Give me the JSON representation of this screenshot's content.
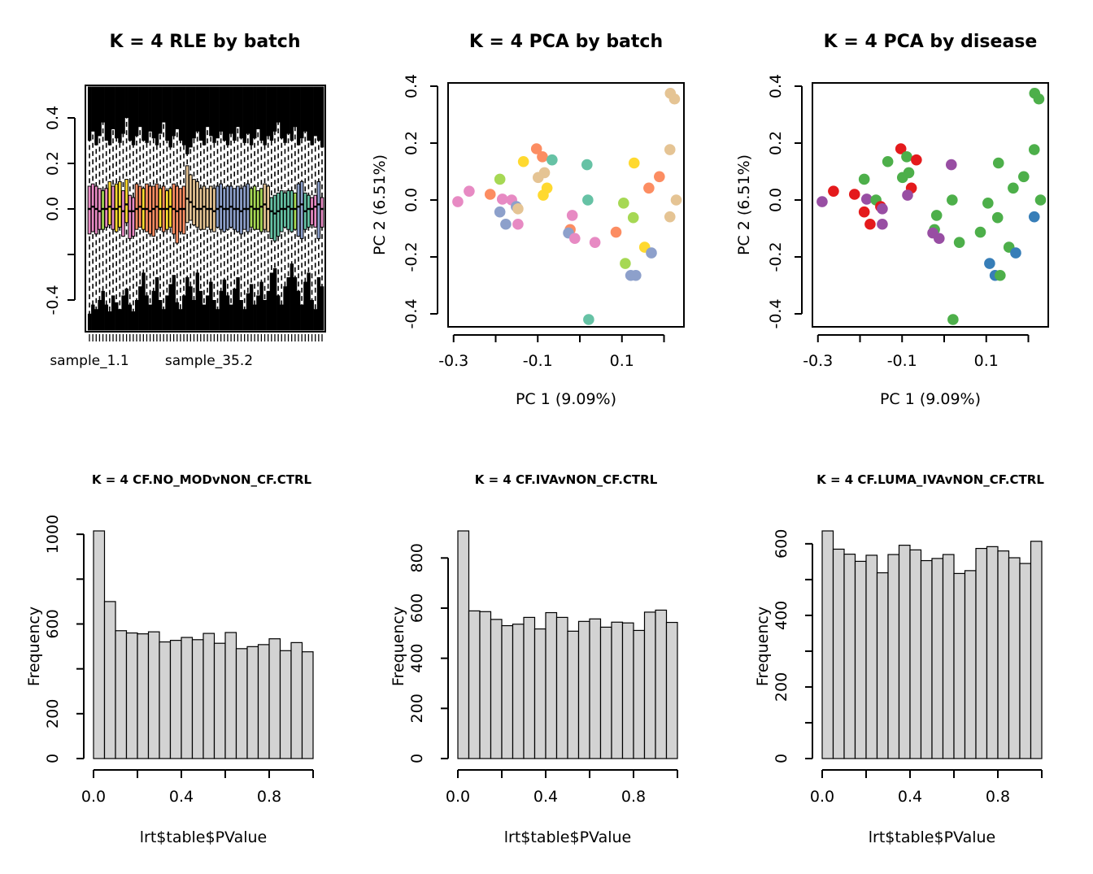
{
  "palettes": {
    "batch": {
      "teal": "#66C2A5",
      "orange": "#FC8D62",
      "blue": "#8DA0CB",
      "pink": "#E78AC3",
      "green": "#A6D854",
      "yellow": "#FFD92F",
      "tan": "#E5C494"
    },
    "disease": {
      "red": "#E41A1C",
      "blue": "#377EB8",
      "green": "#4DAF4A",
      "purple": "#984EA3"
    }
  },
  "hist_bar_fill": "#d3d3d3",
  "pca_points": [
    [
      -0.103,
      0.18,
      "orange",
      "red"
    ],
    [
      -0.089,
      0.152,
      "orange",
      "green"
    ],
    [
      -0.066,
      0.141,
      "teal",
      "red"
    ],
    [
      -0.134,
      0.135,
      "yellow",
      "green"
    ],
    [
      0.017,
      0.124,
      "teal",
      "purple"
    ],
    [
      0.129,
      0.13,
      "yellow",
      "green"
    ],
    [
      0.214,
      0.177,
      "tan",
      "green"
    ],
    [
      -0.19,
      0.073,
      "green",
      "green"
    ],
    [
      -0.099,
      0.079,
      "tan",
      "green"
    ],
    [
      -0.084,
      0.096,
      "tan",
      "green"
    ],
    [
      0.189,
      0.082,
      "orange",
      "green"
    ],
    [
      0.164,
      0.042,
      "orange",
      "green"
    ],
    [
      -0.078,
      0.042,
      "yellow",
      "red"
    ],
    [
      -0.087,
      0.017,
      "yellow",
      "purple"
    ],
    [
      -0.263,
      0.031,
      "pink",
      "red"
    ],
    [
      -0.29,
      -0.006,
      "pink",
      "purple"
    ],
    [
      -0.213,
      0.02,
      "orange",
      "red"
    ],
    [
      -0.184,
      0.003,
      "pink",
      "purple"
    ],
    [
      -0.162,
      0.0,
      "pink",
      "green"
    ],
    [
      -0.151,
      -0.023,
      "blue",
      "red"
    ],
    [
      -0.147,
      -0.031,
      "tan",
      "purple"
    ],
    [
      -0.19,
      -0.042,
      "blue",
      "red"
    ],
    [
      0.019,
      0.0,
      "teal",
      "green"
    ],
    [
      0.104,
      -0.011,
      "green",
      "green"
    ],
    [
      0.229,
      0.0,
      "tan",
      "green"
    ],
    [
      0.214,
      -0.059,
      "tan",
      "blue"
    ],
    [
      0.127,
      -0.062,
      "green",
      "green"
    ],
    [
      -0.176,
      -0.085,
      "blue",
      "red"
    ],
    [
      -0.147,
      -0.085,
      "pink",
      "purple"
    ],
    [
      -0.018,
      -0.054,
      "pink",
      "green"
    ],
    [
      -0.023,
      -0.104,
      "orange",
      "green"
    ],
    [
      -0.027,
      -0.116,
      "blue",
      "purple"
    ],
    [
      -0.012,
      -0.135,
      "pink",
      "purple"
    ],
    [
      0.036,
      -0.149,
      "pink",
      "green"
    ],
    [
      0.086,
      -0.113,
      "orange",
      "green"
    ],
    [
      0.154,
      -0.166,
      "yellow",
      "green"
    ],
    [
      0.17,
      -0.186,
      "blue",
      "blue"
    ],
    [
      0.108,
      -0.223,
      "green",
      "blue"
    ],
    [
      0.121,
      -0.265,
      "blue",
      "blue"
    ],
    [
      0.133,
      -0.265,
      "blue",
      "green"
    ],
    [
      0.021,
      -0.42,
      "teal",
      "green"
    ],
    [
      0.215,
      0.375,
      "tan",
      "green"
    ],
    [
      0.225,
      0.355,
      "tan",
      "green"
    ]
  ],
  "chart_data": [
    {
      "type": "boxplot",
      "title": "K = 4 RLE by batch",
      "ylim": [
        -0.54,
        0.54
      ],
      "yticks": [
        {
          "v": 0.4,
          "label": "0.4"
        },
        {
          "v": 0.2,
          "label": "0.2"
        },
        {
          "v": 0.0,
          "label": "0.0"
        },
        {
          "v": -0.2,
          "label": ""
        },
        {
          "v": -0.4,
          "label": "-0.4"
        }
      ],
      "sample_labels": [
        "sample_1.1",
        "sample_35.2"
      ],
      "n_boxes": 70,
      "colors": [
        "pink",
        "pink",
        "pink",
        "pink",
        "green",
        "pink",
        "yellow",
        "pink",
        "yellow",
        "yellow",
        "pink",
        "yellow",
        "pink",
        "pink",
        "orange",
        "orange",
        "yellow",
        "orange",
        "orange",
        "orange",
        "orange",
        "yellow",
        "orange",
        "yellow",
        "yellow",
        "orange",
        "orange",
        "orange",
        "orange",
        "tan",
        "tan",
        "tan",
        "tan",
        "tan",
        "tan",
        "tan",
        "tan",
        "tan",
        "blue",
        "blue",
        "blue",
        "blue",
        "blue",
        "blue",
        "blue",
        "blue",
        "blue",
        "blue",
        "green",
        "green",
        "green",
        "green",
        "tan",
        "tan",
        "teal",
        "teal",
        "teal",
        "teal",
        "teal",
        "teal",
        "teal",
        "green",
        "blue",
        "blue",
        "teal",
        "teal",
        "pink",
        "pink",
        "blue",
        "pink"
      ],
      "q3": [
        0.1,
        0.11,
        0.1,
        0.09,
        0.08,
        0.09,
        0.12,
        0.1,
        0.11,
        0.12,
        0.08,
        0.13,
        0.06,
        0.05,
        0.11,
        0.1,
        0.09,
        0.11,
        0.1,
        0.1,
        0.11,
        0.09,
        0.1,
        0.08,
        0.09,
        0.11,
        0.1,
        0.09,
        0.1,
        0.19,
        0.15,
        0.13,
        0.12,
        0.09,
        0.1,
        0.09,
        0.1,
        0.09,
        0.1,
        0.11,
        0.09,
        0.1,
        0.1,
        0.09,
        0.1,
        0.09,
        0.1,
        0.11,
        0.09,
        0.1,
        0.08,
        0.09,
        0.11,
        0.1,
        0.05,
        0.06,
        0.07,
        0.08,
        0.07,
        0.08,
        0.08,
        0.07,
        0.11,
        0.12,
        0.07,
        0.06,
        0.05,
        0.06,
        0.12,
        0.05
      ],
      "q1": [
        -0.11,
        -0.1,
        -0.11,
        -0.09,
        -0.09,
        -0.08,
        -0.07,
        -0.09,
        -0.1,
        -0.08,
        -0.12,
        -0.06,
        -0.13,
        -0.12,
        -0.09,
        -0.08,
        -0.09,
        -0.1,
        -0.11,
        -0.12,
        -0.09,
        -0.08,
        -0.1,
        -0.09,
        -0.08,
        -0.11,
        -0.15,
        -0.1,
        -0.11,
        -0.06,
        -0.05,
        -0.07,
        -0.08,
        -0.09,
        -0.09,
        -0.08,
        -0.09,
        -0.1,
        -0.08,
        -0.09,
        -0.1,
        -0.09,
        -0.08,
        -0.09,
        -0.1,
        -0.11,
        -0.09,
        -0.1,
        -0.08,
        -0.09,
        -0.09,
        -0.1,
        -0.09,
        -0.1,
        -0.13,
        -0.14,
        -0.12,
        -0.1,
        -0.08,
        -0.09,
        -0.1,
        -0.09,
        -0.12,
        -0.13,
        -0.09,
        -0.08,
        -0.07,
        -0.08,
        -0.13,
        -0.08
      ],
      "med": [
        0,
        0.01,
        0,
        -0.01,
        0,
        0,
        0.01,
        0,
        0,
        0.01,
        -0.01,
        0.02,
        -0.01,
        -0.01,
        0,
        0.01,
        0,
        0,
        -0.01,
        0,
        0.01,
        0,
        0,
        0,
        0.01,
        0,
        -0.01,
        0,
        0,
        0.045,
        0.03,
        0.01,
        0,
        0,
        0.01,
        0,
        0,
        -0.01,
        0,
        0.01,
        0,
        0,
        0.01,
        0,
        0,
        -0.01,
        0,
        0,
        0.01,
        0,
        0,
        0.01,
        0.02,
        0,
        -0.01,
        -0.02,
        -0.01,
        0,
        0,
        0.01,
        0,
        0,
        0.01,
        0.02,
        -0.01,
        0,
        0,
        0.01,
        0.02,
        0
      ],
      "outlier_top_extent": [
        0.3,
        0.34,
        0.28,
        0.32,
        0.38,
        0.3,
        0.28,
        0.35,
        0.31,
        0.29,
        0.33,
        0.4,
        0.3,
        0.28,
        0.32,
        0.36,
        0.3,
        0.29,
        0.34,
        0.31,
        0.28,
        0.33,
        0.38,
        0.3,
        0.27,
        0.32,
        0.35,
        0.3,
        0.28,
        0.24,
        0.27,
        0.31,
        0.34,
        0.3,
        0.28,
        0.36,
        0.32,
        0.29,
        0.31,
        0.34,
        0.3,
        0.28,
        0.33,
        0.3,
        0.36,
        0.31,
        0.29,
        0.33,
        0.28,
        0.31,
        0.35,
        0.3,
        0.28,
        0.32,
        0.3,
        0.34,
        0.38,
        0.31,
        0.29,
        0.33,
        0.3,
        0.36,
        0.28,
        0.31,
        0.34,
        0.3,
        0.28,
        0.32,
        0.3,
        0.27
      ],
      "outlier_bottom_extent": [
        -0.46,
        -0.42,
        -0.44,
        -0.4,
        -0.36,
        -0.42,
        -0.45,
        -0.38,
        -0.41,
        -0.44,
        -0.38,
        -0.35,
        -0.42,
        -0.45,
        -0.4,
        -0.34,
        -0.28,
        -0.38,
        -0.42,
        -0.36,
        -0.3,
        -0.4,
        -0.44,
        -0.38,
        -0.33,
        -0.29,
        -0.41,
        -0.44,
        -0.38,
        -0.3,
        -0.34,
        -0.4,
        -0.28,
        -0.36,
        -0.42,
        -0.38,
        -0.32,
        -0.4,
        -0.44,
        -0.36,
        -0.31,
        -0.38,
        -0.42,
        -0.35,
        -0.3,
        -0.4,
        -0.44,
        -0.37,
        -0.33,
        -0.42,
        -0.38,
        -0.32,
        -0.4,
        -0.36,
        -0.28,
        -0.26,
        -0.38,
        -0.42,
        -0.34,
        -0.3,
        -0.24,
        -0.3,
        -0.36,
        -0.42,
        -0.32,
        -0.28,
        -0.4,
        -0.44,
        -0.3,
        -0.34
      ]
    },
    {
      "type": "scatter",
      "title": "K = 4 PCA by batch",
      "xlabel": "PC 1 (9.09%)",
      "ylabel": "PC 2 (6.51%)",
      "color_by": "batch",
      "point_color_index": 2,
      "xlim": [
        -0.33,
        0.25
      ],
      "ylim": [
        -0.44,
        0.42
      ],
      "xticks": [
        {
          "v": -0.3,
          "label": "-0.3"
        },
        {
          "v": -0.2,
          "label": ""
        },
        {
          "v": -0.1,
          "label": "-0.1"
        },
        {
          "v": 0.0,
          "label": ""
        },
        {
          "v": 0.1,
          "label": "0.1"
        },
        {
          "v": 0.2,
          "label": ""
        }
      ],
      "yticks": [
        {
          "v": 0.4,
          "label": "0.4"
        },
        {
          "v": 0.2,
          "label": "0.2"
        },
        {
          "v": 0.0,
          "label": "0.0"
        },
        {
          "v": -0.2,
          "label": "-0.2"
        },
        {
          "v": -0.4,
          "label": "-0.4"
        }
      ]
    },
    {
      "type": "scatter",
      "title": "K = 4 PCA by disease",
      "xlabel": "PC 1 (9.09%)",
      "ylabel": "PC 2 (6.51%)",
      "color_by": "disease",
      "point_color_index": 3,
      "xlim": [
        -0.33,
        0.25
      ],
      "ylim": [
        -0.44,
        0.42
      ],
      "xticks": [
        {
          "v": -0.3,
          "label": "-0.3"
        },
        {
          "v": -0.2,
          "label": ""
        },
        {
          "v": -0.1,
          "label": "-0.1"
        },
        {
          "v": 0.0,
          "label": ""
        },
        {
          "v": 0.1,
          "label": "0.1"
        },
        {
          "v": 0.2,
          "label": ""
        }
      ],
      "yticks": [
        {
          "v": 0.4,
          "label": "0.4"
        },
        {
          "v": 0.2,
          "label": "0.2"
        },
        {
          "v": 0.0,
          "label": "0.0"
        },
        {
          "v": -0.2,
          "label": "-0.2"
        },
        {
          "v": -0.4,
          "label": "-0.4"
        }
      ]
    },
    {
      "type": "hist",
      "title": "K = 4 CF.NO_MODvNON_CF.CTRL",
      "xlabel": "lrt$table$PValue",
      "ylabel": "Frequency",
      "xlim": [
        0,
        1
      ],
      "bin_width": 0.05,
      "values": [
        1015,
        700,
        570,
        560,
        556,
        565,
        520,
        527,
        540,
        530,
        558,
        514,
        562,
        490,
        499,
        508,
        534,
        481,
        517,
        476
      ],
      "yticks": [
        {
          "v": 0,
          "label": "0"
        },
        {
          "v": 200,
          "label": "200"
        },
        {
          "v": 400,
          "label": ""
        },
        {
          "v": 600,
          "label": "600"
        },
        {
          "v": 800,
          "label": ""
        },
        {
          "v": 1000,
          "label": "1000"
        }
      ],
      "xticks": [
        {
          "v": 0.0,
          "label": "0.0"
        },
        {
          "v": 0.2,
          "label": ""
        },
        {
          "v": 0.4,
          "label": "0.4"
        },
        {
          "v": 0.6,
          "label": ""
        },
        {
          "v": 0.8,
          "label": "0.8"
        },
        {
          "v": 1.0,
          "label": ""
        }
      ]
    },
    {
      "type": "hist",
      "title": "K = 4 CF.IVAvNON_CF.CTRL",
      "xlabel": "lrt$table$PValue",
      "ylabel": "Frequency",
      "xlim": [
        0,
        1
      ],
      "bin_width": 0.05,
      "values": [
        908,
        589,
        586,
        555,
        530,
        536,
        563,
        517,
        582,
        563,
        508,
        547,
        557,
        524,
        544,
        541,
        511,
        584,
        592,
        543
      ],
      "yticks": [
        {
          "v": 0,
          "label": "0"
        },
        {
          "v": 200,
          "label": "200"
        },
        {
          "v": 400,
          "label": "400"
        },
        {
          "v": 600,
          "label": "600"
        },
        {
          "v": 800,
          "label": "800"
        }
      ],
      "xticks": [
        {
          "v": 0.0,
          "label": "0.0"
        },
        {
          "v": 0.2,
          "label": ""
        },
        {
          "v": 0.4,
          "label": "0.4"
        },
        {
          "v": 0.6,
          "label": ""
        },
        {
          "v": 0.8,
          "label": "0.8"
        },
        {
          "v": 1.0,
          "label": ""
        }
      ]
    },
    {
      "type": "hist",
      "title": "K = 4 CF.LUMA_IVAvNON_CF.CTRL",
      "xlabel": "lrt$table$PValue",
      "ylabel": "Frequency",
      "xlim": [
        0,
        1
      ],
      "bin_width": 0.05,
      "values": [
        636,
        585,
        571,
        551,
        568,
        519,
        570,
        596,
        583,
        553,
        559,
        570,
        517,
        525,
        587,
        592,
        580,
        561,
        545,
        607
      ],
      "yticks": [
        {
          "v": 0,
          "label": "0"
        },
        {
          "v": 100,
          "label": ""
        },
        {
          "v": 200,
          "label": "200"
        },
        {
          "v": 300,
          "label": ""
        },
        {
          "v": 400,
          "label": "400"
        },
        {
          "v": 500,
          "label": ""
        },
        {
          "v": 600,
          "label": "600"
        }
      ],
      "xticks": [
        {
          "v": 0.0,
          "label": "0.0"
        },
        {
          "v": 0.2,
          "label": ""
        },
        {
          "v": 0.4,
          "label": "0.4"
        },
        {
          "v": 0.6,
          "label": ""
        },
        {
          "v": 0.8,
          "label": "0.8"
        },
        {
          "v": 1.0,
          "label": ""
        }
      ]
    }
  ]
}
